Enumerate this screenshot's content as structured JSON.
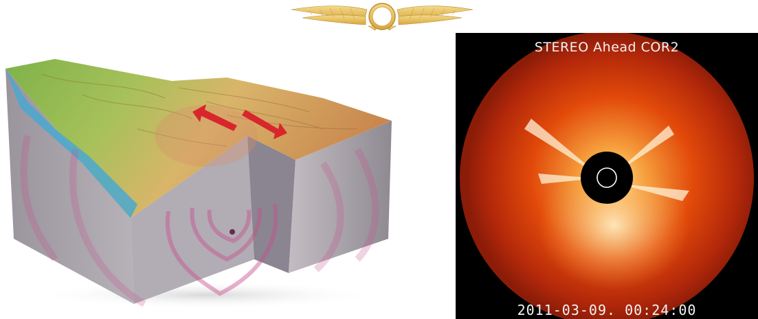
{
  "logo": {
    "icon": "winged-sun-disk"
  },
  "earthquake_illustration": {
    "icons": [
      "fault-motion-arrow-left",
      "fault-motion-arrow-right",
      "hypocenter-dot"
    ],
    "colors": {
      "arrow": "#d8262c",
      "wavefront": "#c8508e",
      "rock": "#a8a0a8",
      "water": "#4aa8d0"
    }
  },
  "coronagraph": {
    "title": "STEREO Ahead COR2",
    "timestamp": "2011-03-09. 00:24:00",
    "colors": {
      "corona": "#e24a0a",
      "background": "#000000",
      "occulter": "#000000"
    }
  }
}
